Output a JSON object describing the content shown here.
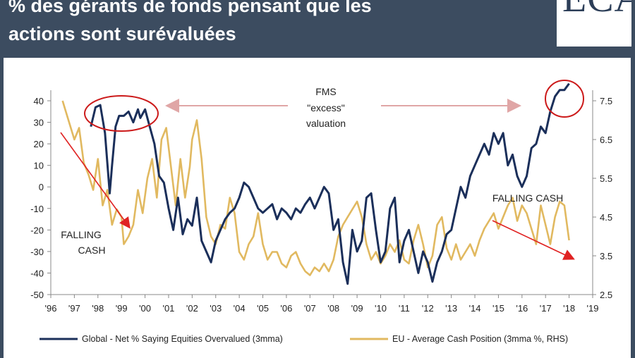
{
  "header": {
    "title_line1": "% des gérants de fonds pensant que les",
    "title_line2": "actions sont surévaluées",
    "logo_text": "ECA"
  },
  "chart_data": {
    "type": "line",
    "xlim": [
      1996,
      2019
    ],
    "x_ticks": [
      "'96",
      "'97",
      "'98",
      "'99",
      "'00",
      "'01",
      "'02",
      "'03",
      "'04",
      "'05",
      "'06",
      "'07",
      "'08",
      "'09",
      "'10",
      "'11",
      "'12",
      "'13",
      "'14",
      "'15",
      "'16",
      "'17",
      "'18",
      "'19"
    ],
    "y_left": {
      "lim": [
        -50,
        40
      ],
      "ticks": [
        "40",
        "30",
        "20",
        "10",
        "0",
        "-10",
        "-20",
        "-30",
        "-40",
        "-50"
      ]
    },
    "y_right": {
      "lim": [
        2.5,
        7.5
      ],
      "ticks": [
        "7.5",
        "6.5",
        "5.5",
        "4.5",
        "3.5",
        "2.5"
      ]
    },
    "grid": false,
    "legend_position": "bottom",
    "colors": {
      "global": "#1b2f5a",
      "eu": "#e1b960",
      "arrow": "#e02222",
      "circle": "#cc1a1a",
      "arrow_gray": "#e0a6a6"
    },
    "series": [
      {
        "name": "Global - Net % Saying Equities Overvalued (3mma)",
        "axis": "left",
        "x": [
          1997.7,
          1997.9,
          1998.1,
          1998.3,
          1998.5,
          1998.6,
          1998.75,
          1998.9,
          1999.1,
          1999.3,
          1999.5,
          1999.7,
          1999.8,
          2000.0,
          2000.2,
          2000.4,
          2000.6,
          2000.8,
          2001.0,
          2001.2,
          2001.4,
          2001.6,
          2001.8,
          2002.0,
          2002.2,
          2002.4,
          2002.6,
          2002.8,
          2003.0,
          2003.2,
          2003.4,
          2003.6,
          2003.8,
          2004.0,
          2004.2,
          2004.4,
          2004.6,
          2004.8,
          2005.0,
          2005.2,
          2005.4,
          2005.6,
          2005.8,
          2006.0,
          2006.2,
          2006.4,
          2006.6,
          2006.8,
          2007.0,
          2007.2,
          2007.4,
          2007.6,
          2007.8,
          2008.0,
          2008.2,
          2008.4,
          2008.6,
          2008.8,
          2009.0,
          2009.2,
          2009.4,
          2009.6,
          2009.8,
          2010.0,
          2010.2,
          2010.4,
          2010.6,
          2010.8,
          2011.0,
          2011.2,
          2011.4,
          2011.6,
          2011.8,
          2012.0,
          2012.2,
          2012.4,
          2012.6,
          2012.8,
          2013.0,
          2013.2,
          2013.4,
          2013.6,
          2013.8,
          2014.0,
          2014.2,
          2014.4,
          2014.6,
          2014.8,
          2015.0,
          2015.2,
          2015.4,
          2015.6,
          2015.8,
          2016.0,
          2016.2,
          2016.4,
          2016.6,
          2016.8,
          2017.0,
          2017.2,
          2017.4,
          2017.6,
          2017.8,
          2018.0
        ],
        "values": [
          28,
          37,
          38,
          25,
          -3,
          10,
          28,
          33,
          33,
          35,
          30,
          36,
          32,
          36,
          28,
          20,
          5,
          2,
          -10,
          -20,
          -5,
          -22,
          -15,
          -18,
          -5,
          -25,
          -30,
          -35,
          -25,
          -20,
          -15,
          -12,
          -10,
          -5,
          2,
          0,
          -5,
          -10,
          -12,
          -10,
          -8,
          -15,
          -10,
          -12,
          -15,
          -10,
          -12,
          -8,
          -5,
          -10,
          -5,
          0,
          -3,
          -20,
          -15,
          -35,
          -45,
          -20,
          -30,
          -25,
          -5,
          -3,
          -20,
          -35,
          -30,
          -10,
          -5,
          -35,
          -25,
          -20,
          -30,
          -40,
          -30,
          -35,
          -44,
          -35,
          -30,
          -22,
          -20,
          -10,
          0,
          -5,
          5,
          10,
          15,
          20,
          15,
          25,
          20,
          25,
          10,
          15,
          5,
          0,
          5,
          18,
          20,
          28,
          25,
          35,
          42,
          45,
          45,
          48
        ],
        "note": "values approximated"
      },
      {
        "name": "EU - Average Cash Position (3mma %, RHS)",
        "axis": "right",
        "x": [
          1996.5,
          1996.6,
          1996.8,
          1997.0,
          1997.2,
          1997.4,
          1997.6,
          1997.8,
          1998.0,
          1998.2,
          1998.4,
          1998.6,
          1998.8,
          1999.0,
          1999.1,
          1999.3,
          1999.5,
          1999.7,
          1999.9,
          2000.1,
          2000.3,
          2000.5,
          2000.7,
          2000.9,
          2001.1,
          2001.3,
          2001.5,
          2001.7,
          2001.9,
          2002.0,
          2002.2,
          2002.4,
          2002.6,
          2002.8,
          2003.0,
          2003.2,
          2003.4,
          2003.6,
          2003.8,
          2004.0,
          2004.2,
          2004.4,
          2004.6,
          2004.8,
          2005.0,
          2005.2,
          2005.4,
          2005.6,
          2005.8,
          2006.0,
          2006.2,
          2006.4,
          2006.6,
          2006.8,
          2007.0,
          2007.2,
          2007.4,
          2007.6,
          2007.8,
          2008.0,
          2008.2,
          2008.4,
          2008.6,
          2008.8,
          2009.0,
          2009.2,
          2009.4,
          2009.6,
          2009.8,
          2010.0,
          2010.2,
          2010.4,
          2010.6,
          2010.8,
          2011.0,
          2011.2,
          2011.4,
          2011.6,
          2011.8,
          2012.0,
          2012.2,
          2012.4,
          2012.6,
          2012.8,
          2013.0,
          2013.2,
          2013.4,
          2013.6,
          2013.8,
          2014.0,
          2014.2,
          2014.4,
          2014.6,
          2014.8,
          2015.0,
          2015.2,
          2015.4,
          2015.6,
          2015.8,
          2016.0,
          2016.2,
          2016.4,
          2016.6,
          2016.8,
          2017.0,
          2017.2,
          2017.4,
          2017.6,
          2017.8,
          2018.0
        ],
        "values": [
          7.5,
          7.3,
          6.9,
          6.5,
          6.8,
          5.9,
          5.6,
          5.2,
          6.0,
          4.8,
          5.2,
          4.3,
          4.7,
          4.5,
          3.8,
          4.0,
          4.3,
          5.2,
          4.6,
          5.5,
          6.0,
          5.0,
          6.5,
          6.8,
          5.8,
          4.8,
          6.0,
          5.0,
          5.8,
          6.5,
          7.0,
          6.0,
          4.5,
          4.0,
          3.8,
          4.3,
          4.2,
          5.0,
          4.6,
          3.6,
          3.4,
          3.8,
          4.0,
          4.6,
          3.8,
          3.4,
          3.6,
          3.6,
          3.3,
          3.2,
          3.5,
          3.6,
          3.3,
          3.1,
          3.0,
          3.2,
          3.1,
          3.3,
          3.1,
          3.4,
          4.0,
          4.3,
          4.5,
          4.7,
          4.9,
          4.5,
          3.8,
          3.4,
          3.6,
          3.3,
          3.5,
          3.8,
          3.6,
          3.9,
          3.4,
          3.3,
          3.9,
          4.3,
          3.8,
          3.2,
          3.5,
          4.3,
          4.5,
          3.7,
          3.4,
          3.8,
          3.4,
          3.6,
          3.8,
          3.5,
          3.9,
          4.2,
          4.4,
          4.6,
          4.2,
          4.5,
          4.8,
          5.0,
          4.4,
          4.8,
          4.6,
          4.2,
          3.8,
          4.8,
          4.3,
          3.8,
          4.5,
          4.9,
          4.8,
          3.9
        ],
        "note": "values approximated"
      }
    ],
    "annotations": {
      "fms_line1": "FMS",
      "fms_line2": "\"excess\"",
      "fms_line3": "valuation",
      "falling_cash_left_line1": "FALLING",
      "falling_cash_left_line2": "CASH",
      "falling_cash_right": "FALLING  CASH"
    }
  }
}
